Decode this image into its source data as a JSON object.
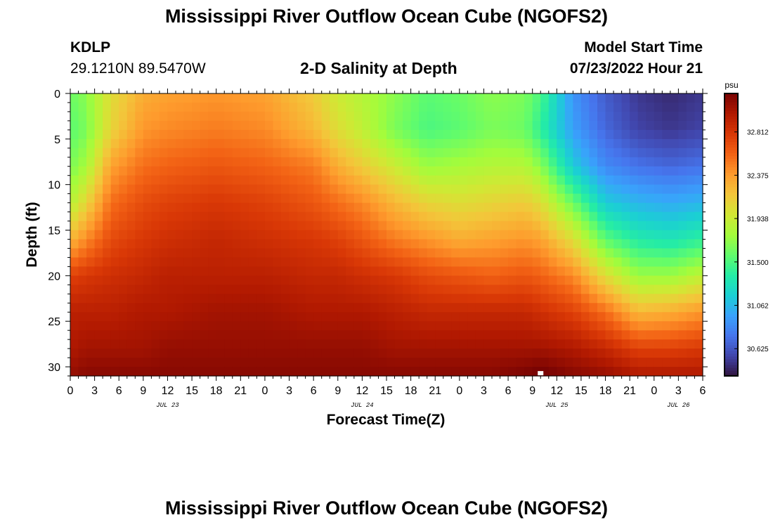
{
  "header": {
    "title": "Mississippi River Outflow Ocean Cube (NGOFS2)",
    "station": "KDLP",
    "coords": "29.1210N  89.5470W",
    "subtitle": "2-D Salinity at Depth",
    "model_start_label": "Model Start Time",
    "model_start_value": "07/23/2022 Hour 21"
  },
  "footer": {
    "title": "Mississippi River Outflow Ocean Cube (NGOFS2)"
  },
  "chart_data": {
    "type": "heatmap",
    "title": "2-D Salinity at Depth",
    "xlabel": "Forecast Time(Z)",
    "ylabel": "Depth (ft)",
    "x_tick_labels": [
      "0",
      "3",
      "6",
      "9",
      "12",
      "15",
      "18",
      "21",
      "0",
      "3",
      "6",
      "9",
      "12",
      "15",
      "18",
      "21",
      "0",
      "3",
      "6",
      "9",
      "12",
      "15",
      "18",
      "21",
      "0",
      "3",
      "6"
    ],
    "x_day_labels": [
      {
        "label": "JUL 23",
        "hour": 12
      },
      {
        "label": "JUL 24",
        "hour": 36
      },
      {
        "label": "JUL 25",
        "hour": 60
      },
      {
        "label": "JUL 26",
        "hour": 75
      }
    ],
    "x_range_hours": [
      0,
      78
    ],
    "y_ticks": [
      0,
      5,
      10,
      15,
      20,
      25,
      30
    ],
    "ylim": [
      0,
      31
    ],
    "y_reversed": true,
    "colorbar": {
      "unit": "psu",
      "ticks": [
        32.812,
        32.375,
        31.938,
        31.5,
        31.062,
        30.625
      ],
      "tick_labels": [
        "32.812",
        "32.375",
        "31.938",
        "31.500",
        "31.062",
        "30.625"
      ],
      "range": [
        30.35,
        33.2
      ],
      "colors": [
        "#30123b",
        "#4145ab",
        "#4675ed",
        "#39a2fc",
        "#1bcfd4",
        "#24eca6",
        "#61fc6c",
        "#a4fc3b",
        "#d1e834",
        "#f3c63a",
        "#fe9b2d",
        "#f36315",
        "#d93806",
        "#b11901",
        "#7a0403"
      ]
    },
    "anchor_hours": [
      0,
      2,
      5,
      9,
      12,
      18,
      24,
      30,
      33,
      36,
      40,
      44,
      48,
      52,
      56,
      58,
      62,
      66,
      70,
      74,
      78
    ],
    "anchor_depths": [
      0,
      4,
      8,
      12,
      16,
      20,
      24,
      28,
      31
    ],
    "salinity_grid": [
      [
        31.6,
        31.55,
        31.65,
        31.85,
        32.25,
        32.75,
        32.95,
        33.0,
        33.1
      ],
      [
        31.7,
        31.65,
        31.8,
        32.1,
        32.45,
        32.8,
        32.95,
        33.05,
        33.15
      ],
      [
        32.05,
        32.1,
        32.35,
        32.55,
        32.7,
        32.85,
        32.95,
        33.05,
        33.15
      ],
      [
        32.3,
        32.4,
        32.55,
        32.7,
        32.8,
        32.9,
        33.0,
        33.05,
        33.15
      ],
      [
        32.35,
        32.45,
        32.6,
        32.75,
        32.85,
        32.95,
        33.0,
        33.1,
        33.15
      ],
      [
        32.4,
        32.5,
        32.65,
        32.8,
        32.9,
        32.95,
        33.05,
        33.1,
        33.15
      ],
      [
        32.35,
        32.45,
        32.6,
        32.75,
        32.85,
        32.95,
        33.05,
        33.1,
        33.15
      ],
      [
        32.15,
        32.25,
        32.5,
        32.65,
        32.8,
        32.9,
        33.0,
        33.1,
        33.15
      ],
      [
        31.95,
        32.05,
        32.3,
        32.55,
        32.75,
        32.9,
        33.0,
        33.1,
        33.15
      ],
      [
        31.85,
        31.9,
        32.15,
        32.45,
        32.65,
        32.85,
        33.0,
        33.1,
        33.15
      ],
      [
        31.7,
        31.65,
        31.95,
        32.25,
        32.5,
        32.8,
        32.95,
        33.05,
        33.15
      ],
      [
        31.55,
        31.5,
        31.75,
        32.1,
        32.4,
        32.7,
        32.9,
        33.05,
        33.15
      ],
      [
        31.6,
        31.55,
        31.8,
        32.05,
        32.3,
        32.65,
        32.9,
        33.05,
        33.15
      ],
      [
        31.7,
        31.65,
        31.85,
        32.1,
        32.35,
        32.6,
        32.9,
        33.05,
        33.15
      ],
      [
        31.65,
        31.6,
        31.85,
        32.15,
        32.4,
        32.65,
        32.9,
        33.05,
        33.2
      ],
      [
        31.5,
        31.4,
        31.7,
        32.05,
        32.35,
        32.6,
        32.85,
        33.05,
        33.25
      ],
      [
        30.9,
        30.95,
        31.15,
        31.6,
        32.05,
        32.45,
        32.75,
        33.0,
        33.15
      ],
      [
        30.65,
        30.7,
        30.85,
        31.15,
        31.55,
        32.05,
        32.55,
        32.9,
        33.1
      ],
      [
        30.5,
        30.55,
        30.75,
        31.05,
        31.35,
        31.75,
        32.25,
        32.75,
        33.0
      ],
      [
        30.45,
        30.5,
        30.7,
        31.0,
        31.3,
        31.75,
        32.3,
        32.75,
        33.0
      ],
      [
        30.5,
        30.55,
        30.75,
        31.05,
        31.4,
        31.9,
        32.4,
        32.8,
        33.0
      ]
    ],
    "marker": {
      "hour": 58,
      "depth": 30.7
    }
  }
}
